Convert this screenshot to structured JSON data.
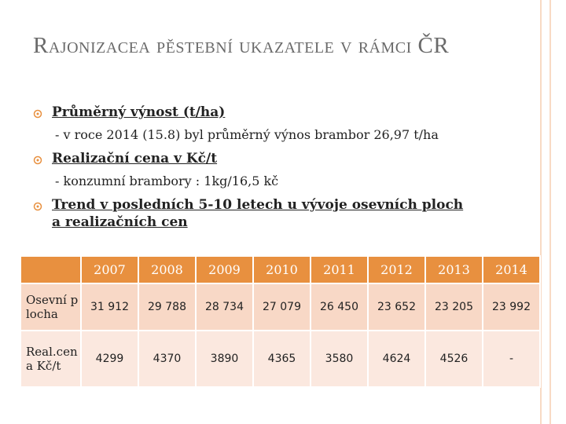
{
  "header": {
    "title": "Rajonizacea  pěstební ukazatele v rámci ČR"
  },
  "bullets": [
    {
      "heading": "Průměrný výnost (t/ha)",
      "detail": "- v roce 2014 (15.8) byl průměrný výnos brambor 26,97 t/ha"
    },
    {
      "heading": "Realizační cena v Kč/t",
      "detail": "- konzumní brambory : 1kg/16,5 kč"
    },
    {
      "heading": "Trend  v posledních 5-10 letech u vývoje osevních ploch a realizačních cen"
    }
  ],
  "table": {
    "columns": [
      "2007",
      "2008",
      "2009",
      "2010",
      "2011",
      "2012",
      "2013",
      "2014"
    ],
    "rows": [
      {
        "label": "Osevní plocha",
        "cells": [
          "31 912",
          "29 788",
          "28 734",
          "27 079",
          "26 450",
          "23 652",
          "23 205",
          "23 992"
        ]
      },
      {
        "label": "Real.cena Kč/t",
        "cells": [
          "4299",
          "4370",
          "3890",
          "4365",
          "3580",
          "4624",
          "4526",
          "-"
        ]
      }
    ]
  }
}
